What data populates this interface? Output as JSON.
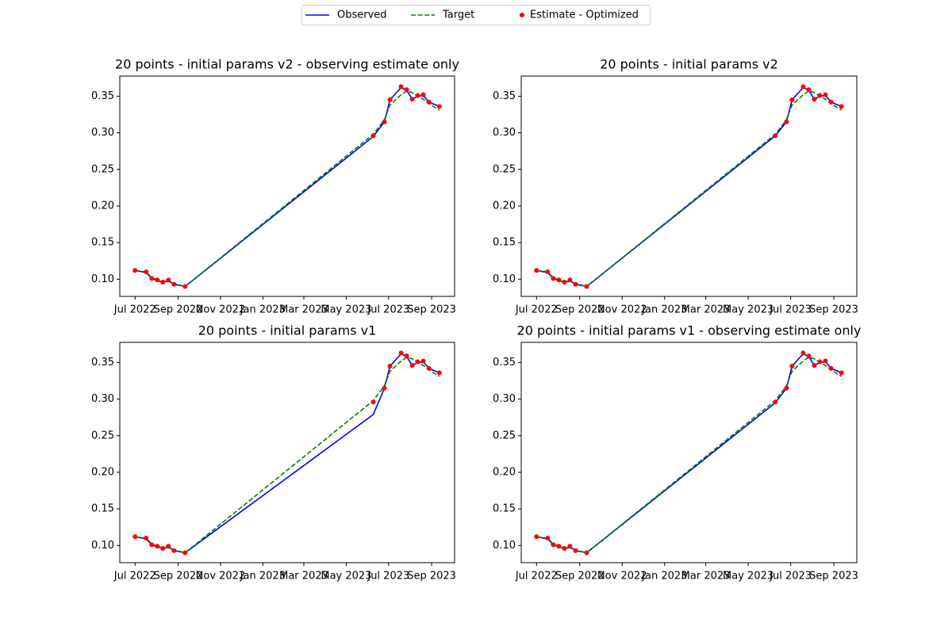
{
  "legend": {
    "position": "upper center",
    "items": [
      {
        "name": "Observed",
        "color": "#0000ff",
        "style": "solid"
      },
      {
        "name": "Target",
        "color": "#008000",
        "style": "dashed"
      },
      {
        "name": "Estimate - Optimized",
        "color": "#ff0000",
        "style": "markers"
      }
    ]
  },
  "chart_data": [
    {
      "type": "line",
      "title": "20 points - initial params v2 - observing estimate only",
      "x": [
        19174,
        19190,
        19198,
        19206,
        19214,
        19222,
        19230,
        19246,
        19517,
        19533,
        19541,
        19557,
        19565,
        19573,
        19581,
        19589,
        19597,
        19612
      ],
      "series": [
        {
          "color": "#0000ff",
          "style": "solid",
          "values": [
            0.112,
            0.109,
            0.101,
            0.098,
            0.096,
            0.098,
            0.093,
            0.09,
            0.295,
            0.315,
            0.345,
            0.362,
            0.358,
            0.346,
            0.35,
            0.351,
            0.342,
            0.336
          ]
        },
        {
          "color": "#008000",
          "style": "dashed",
          "values": [
            0.112,
            0.11,
            0.102,
            0.099,
            0.096,
            0.097,
            0.094,
            0.09,
            0.298,
            0.318,
            0.338,
            0.352,
            0.357,
            0.355,
            0.35,
            0.346,
            0.34,
            0.331
          ]
        },
        {
          "color": "#ff0000",
          "style": "markers",
          "values": [
            0.112,
            0.11,
            0.101,
            0.099,
            0.096,
            0.099,
            0.093,
            0.09,
            0.296,
            0.315,
            0.345,
            0.363,
            0.359,
            0.346,
            0.351,
            0.352,
            0.342,
            0.336
          ]
        }
      ],
      "xlim": [
        19152,
        19634
      ],
      "ylim": [
        0.0765,
        0.3775
      ],
      "xticks": [
        {
          "value": 19174,
          "label": "Jul 2022"
        },
        {
          "value": 19236,
          "label": "Sep 2022"
        },
        {
          "value": 19297,
          "label": "Nov 2022"
        },
        {
          "value": 19358,
          "label": "Jan 2023"
        },
        {
          "value": 19417,
          "label": "Mar 2023"
        },
        {
          "value": 19478,
          "label": "May 2023"
        },
        {
          "value": 19539,
          "label": "Jul 2023"
        },
        {
          "value": 19601,
          "label": "Sep 2023"
        }
      ],
      "yticks": [
        {
          "value": 0.1,
          "label": "0.10"
        },
        0.15,
        {
          "value": 0.2,
          "label": "0.20"
        },
        0.25,
        {
          "value": 0.3,
          "label": "0.30"
        },
        0.35
      ]
    },
    {
      "type": "line",
      "title": "20 points - initial params v2",
      "x": [
        19174,
        19190,
        19198,
        19206,
        19214,
        19222,
        19230,
        19246,
        19517,
        19533,
        19541,
        19557,
        19565,
        19573,
        19581,
        19589,
        19597,
        19612
      ],
      "series": [
        {
          "color": "#0000ff",
          "style": "solid",
          "values": [
            0.112,
            0.109,
            0.101,
            0.098,
            0.096,
            0.098,
            0.093,
            0.09,
            0.296,
            0.315,
            0.345,
            0.362,
            0.358,
            0.346,
            0.35,
            0.351,
            0.342,
            0.336
          ]
        },
        {
          "color": "#008000",
          "style": "dashed",
          "values": [
            0.112,
            0.11,
            0.102,
            0.099,
            0.096,
            0.097,
            0.094,
            0.09,
            0.298,
            0.318,
            0.338,
            0.352,
            0.357,
            0.355,
            0.35,
            0.346,
            0.34,
            0.331
          ]
        },
        {
          "color": "#ff0000",
          "style": "markers",
          "values": [
            0.112,
            0.11,
            0.101,
            0.099,
            0.096,
            0.099,
            0.093,
            0.09,
            0.296,
            0.315,
            0.345,
            0.363,
            0.359,
            0.346,
            0.351,
            0.352,
            0.342,
            0.336
          ]
        }
      ],
      "xlim": [
        19152,
        19634
      ],
      "ylim": [
        0.0765,
        0.3775
      ],
      "xticks": [
        {
          "value": 19174,
          "label": "Jul 2022"
        },
        {
          "value": 19236,
          "label": "Sep 2022"
        },
        {
          "value": 19297,
          "label": "Nov 2022"
        },
        {
          "value": 19358,
          "label": "Jan 2023"
        },
        {
          "value": 19417,
          "label": "Mar 2023"
        },
        {
          "value": 19478,
          "label": "May 2023"
        },
        {
          "value": 19539,
          "label": "Jul 2023"
        },
        {
          "value": 19601,
          "label": "Sep 2023"
        }
      ],
      "yticks": [
        {
          "value": 0.1,
          "label": "0.10"
        },
        0.15,
        {
          "value": 0.2,
          "label": "0.20"
        },
        0.25,
        {
          "value": 0.3,
          "label": "0.30"
        },
        0.35
      ]
    },
    {
      "type": "line",
      "title": "20 points - initial params v1",
      "x": [
        19174,
        19190,
        19198,
        19206,
        19214,
        19222,
        19230,
        19246,
        19517,
        19533,
        19541,
        19557,
        19565,
        19573,
        19581,
        19589,
        19597,
        19612
      ],
      "series": [
        {
          "color": "#0000ff",
          "style": "solid",
          "values": [
            0.112,
            0.109,
            0.101,
            0.098,
            0.096,
            0.098,
            0.093,
            0.09,
            0.279,
            0.315,
            0.345,
            0.362,
            0.358,
            0.346,
            0.35,
            0.351,
            0.342,
            0.336
          ]
        },
        {
          "color": "#008000",
          "style": "dashed",
          "values": [
            0.112,
            0.11,
            0.102,
            0.099,
            0.096,
            0.097,
            0.094,
            0.09,
            0.298,
            0.318,
            0.338,
            0.352,
            0.357,
            0.355,
            0.35,
            0.346,
            0.34,
            0.331
          ]
        },
        {
          "color": "#ff0000",
          "style": "markers",
          "values": [
            0.112,
            0.11,
            0.101,
            0.099,
            0.096,
            0.099,
            0.093,
            0.09,
            0.296,
            0.315,
            0.345,
            0.363,
            0.359,
            0.346,
            0.351,
            0.352,
            0.342,
            0.336
          ]
        }
      ],
      "xlim": [
        19152,
        19634
      ],
      "ylim": [
        0.0765,
        0.3775
      ],
      "xticks": [
        {
          "value": 19174,
          "label": "Jul 2022"
        },
        {
          "value": 19236,
          "label": "Sep 2022"
        },
        {
          "value": 19297,
          "label": "Nov 2022"
        },
        {
          "value": 19358,
          "label": "Jan 2023"
        },
        {
          "value": 19417,
          "label": "Mar 2023"
        },
        {
          "value": 19478,
          "label": "May 2023"
        },
        {
          "value": 19539,
          "label": "Jul 2023"
        },
        {
          "value": 19601,
          "label": "Sep 2023"
        }
      ],
      "yticks": [
        {
          "value": 0.1,
          "label": "0.10"
        },
        0.15,
        {
          "value": 0.2,
          "label": "0.20"
        },
        0.25,
        {
          "value": 0.3,
          "label": "0.30"
        },
        0.35
      ]
    },
    {
      "type": "line",
      "title": "20 points - initial params v1 - observing estimate only",
      "x": [
        19174,
        19190,
        19198,
        19206,
        19214,
        19222,
        19230,
        19246,
        19517,
        19533,
        19541,
        19557,
        19565,
        19573,
        19581,
        19589,
        19597,
        19612
      ],
      "series": [
        {
          "color": "#0000ff",
          "style": "solid",
          "values": [
            0.112,
            0.109,
            0.101,
            0.098,
            0.096,
            0.098,
            0.093,
            0.09,
            0.295,
            0.315,
            0.345,
            0.362,
            0.358,
            0.346,
            0.35,
            0.351,
            0.342,
            0.336
          ]
        },
        {
          "color": "#008000",
          "style": "dashed",
          "values": [
            0.112,
            0.11,
            0.102,
            0.099,
            0.096,
            0.097,
            0.094,
            0.09,
            0.298,
            0.318,
            0.338,
            0.352,
            0.357,
            0.355,
            0.35,
            0.346,
            0.34,
            0.331
          ]
        },
        {
          "color": "#ff0000",
          "style": "markers",
          "values": [
            0.112,
            0.11,
            0.101,
            0.099,
            0.096,
            0.099,
            0.093,
            0.09,
            0.296,
            0.315,
            0.345,
            0.363,
            0.359,
            0.346,
            0.351,
            0.352,
            0.342,
            0.336
          ]
        }
      ],
      "xlim": [
        19152,
        19634
      ],
      "ylim": [
        0.0765,
        0.3775
      ],
      "xticks": [
        {
          "value": 19174,
          "label": "Jul 2022"
        },
        {
          "value": 19236,
          "label": "Sep 2022"
        },
        {
          "value": 19297,
          "label": "Nov 2022"
        },
        {
          "value": 19358,
          "label": "Jan 2023"
        },
        {
          "value": 19417,
          "label": "Mar 2023"
        },
        {
          "value": 19478,
          "label": "May 2023"
        },
        {
          "value": 19539,
          "label": "Jul 2023"
        },
        {
          "value": 19601,
          "label": "Sep 2023"
        }
      ],
      "yticks": [
        {
          "value": 0.1,
          "label": "0.10"
        },
        0.15,
        {
          "value": 0.2,
          "label": "0.20"
        },
        0.25,
        {
          "value": 0.3,
          "label": "0.30"
        },
        0.35
      ]
    }
  ]
}
